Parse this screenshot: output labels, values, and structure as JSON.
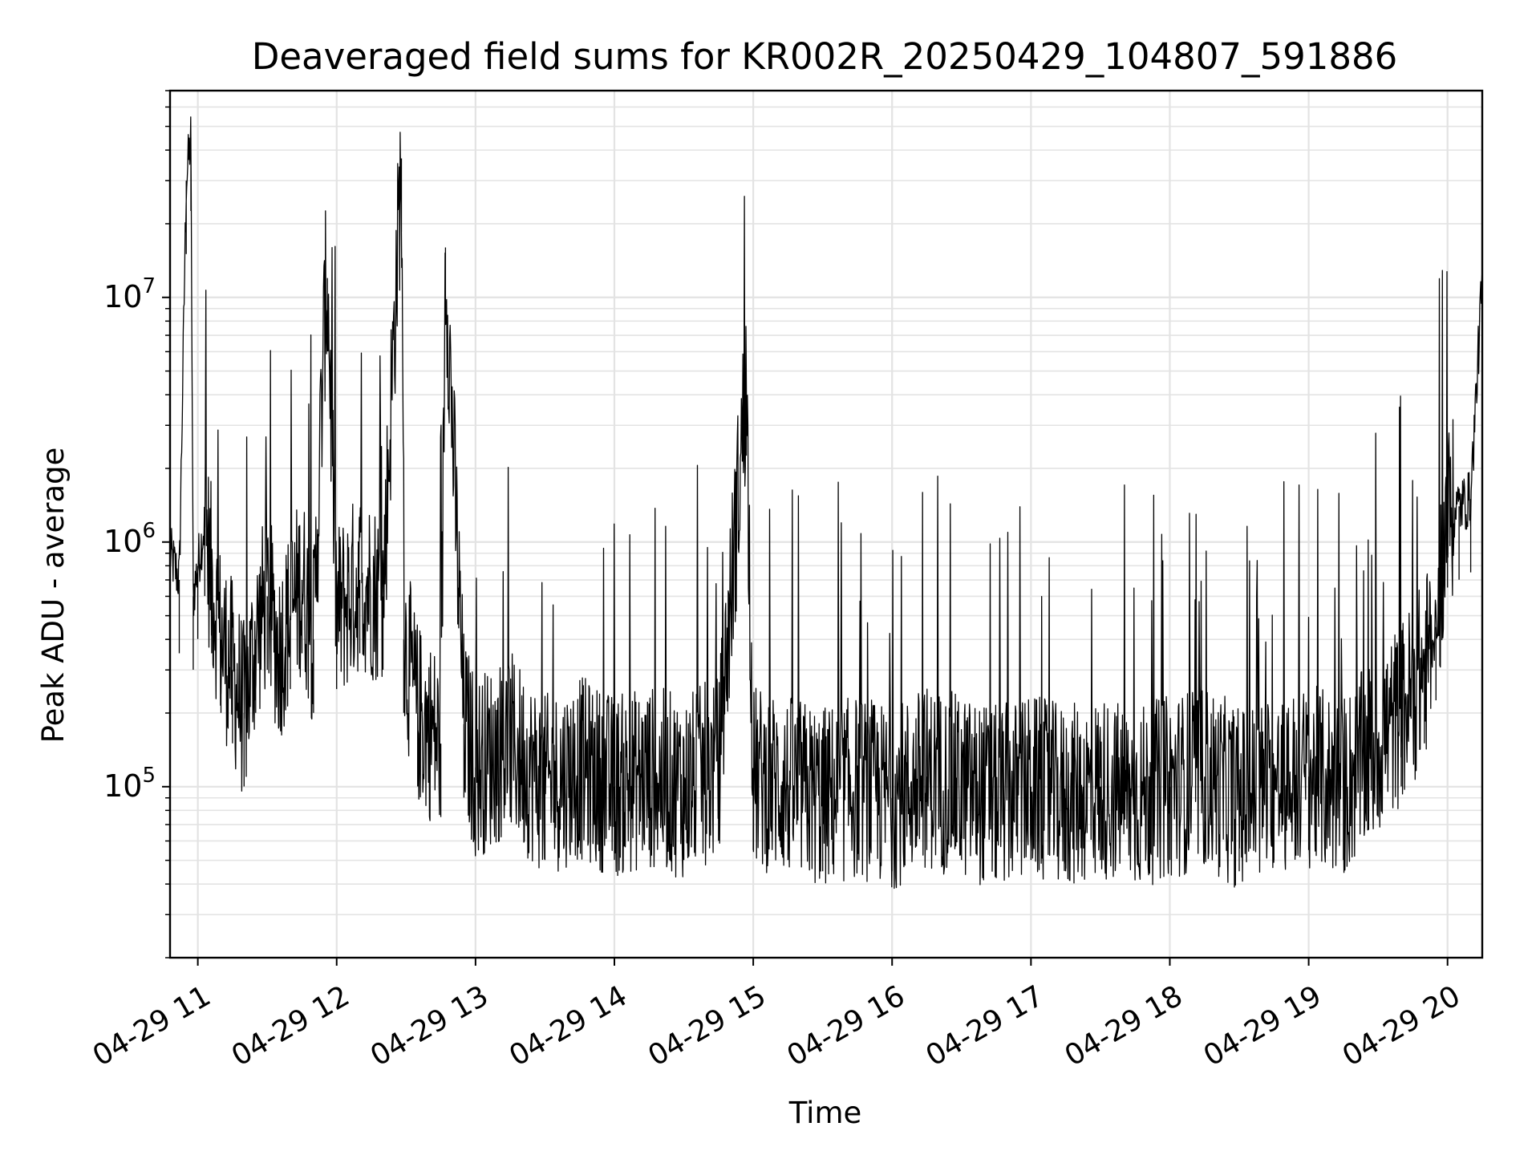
{
  "chart_data": {
    "type": "line",
    "title": "Deaveraged field sums for KR002R_20250429_104807_591886",
    "xlabel": "Time",
    "ylabel": "Peak ADU - average",
    "yscale": "log",
    "ylim": [
      20000,
      70000000
    ],
    "xlim": [
      "2025-04-29 10:48",
      "2025-04-29 20:15"
    ],
    "grid": true,
    "line_color": "#000000",
    "x_ticks": [
      "04-29 11",
      "04-29 12",
      "04-29 13",
      "04-29 14",
      "04-29 15",
      "04-29 16",
      "04-29 17",
      "04-29 18",
      "04-29 19",
      "04-29 20"
    ],
    "y_ticks": [
      {
        "base": "10",
        "exp": "5",
        "value": 100000
      },
      {
        "base": "10",
        "exp": "6",
        "value": 1000000
      },
      {
        "base": "10",
        "exp": "7",
        "value": 10000000
      }
    ],
    "series": [
      {
        "x": [
          "2025-04-29 10:48",
          "2025-04-29 10:52",
          "2025-04-29 10:55",
          "2025-04-29 10:57",
          "2025-04-29 10:58",
          "2025-04-29 11:00",
          "2025-04-29 11:03",
          "2025-04-29 11:06",
          "2025-04-29 11:10",
          "2025-04-29 11:15",
          "2025-04-29 11:20",
          "2025-04-29 11:25",
          "2025-04-29 11:30",
          "2025-04-29 11:35",
          "2025-04-29 11:40",
          "2025-04-29 11:45",
          "2025-04-29 11:50",
          "2025-04-29 11:55",
          "2025-04-29 11:56",
          "2025-04-29 12:00",
          "2025-04-29 12:10",
          "2025-04-29 12:20",
          "2025-04-29 12:28",
          "2025-04-29 12:29",
          "2025-04-29 12:35",
          "2025-04-29 12:45",
          "2025-04-29 12:47",
          "2025-04-29 12:55",
          "2025-04-29 13:00",
          "2025-04-29 13:15",
          "2025-04-29 13:30",
          "2025-04-29 13:45",
          "2025-04-29 14:00",
          "2025-04-29 14:15",
          "2025-04-29 14:30",
          "2025-04-29 14:45",
          "2025-04-29 14:57",
          "2025-04-29 15:00",
          "2025-04-29 15:15",
          "2025-04-29 15:30",
          "2025-04-29 15:45",
          "2025-04-29 16:00",
          "2025-04-29 16:15",
          "2025-04-29 16:30",
          "2025-04-29 16:45",
          "2025-04-29 17:00",
          "2025-04-29 17:15",
          "2025-04-29 17:30",
          "2025-04-29 17:45",
          "2025-04-29 18:00",
          "2025-04-29 18:15",
          "2025-04-29 18:30",
          "2025-04-29 18:45",
          "2025-04-29 19:00",
          "2025-04-29 19:15",
          "2025-04-29 19:30",
          "2025-04-29 19:40",
          "2025-04-29 19:50",
          "2025-04-29 19:55",
          "2025-04-29 20:00",
          "2025-04-29 20:05",
          "2025-04-29 20:10",
          "2025-04-29 20:15"
        ],
        "y": [
          900000,
          700000,
          30000000,
          45000000,
          600000,
          800000,
          1200000,
          700000,
          400000,
          300000,
          200000,
          400000,
          600000,
          350000,
          500000,
          700000,
          400000,
          9000000,
          12000000,
          500000,
          700000,
          600000,
          37000000,
          400000,
          200000,
          150000,
          16000000,
          180000,
          120000,
          150000,
          100000,
          120000,
          100000,
          110000,
          100000,
          120000,
          4500000,
          110000,
          100000,
          90000,
          100000,
          90000,
          110000,
          100000,
          90000,
          100000,
          90000,
          100000,
          90000,
          100000,
          110000,
          90000,
          100000,
          110000,
          100000,
          150000,
          200000,
          300000,
          450000,
          1300000,
          1400000,
          1500000,
          12000000
        ]
      }
    ]
  }
}
